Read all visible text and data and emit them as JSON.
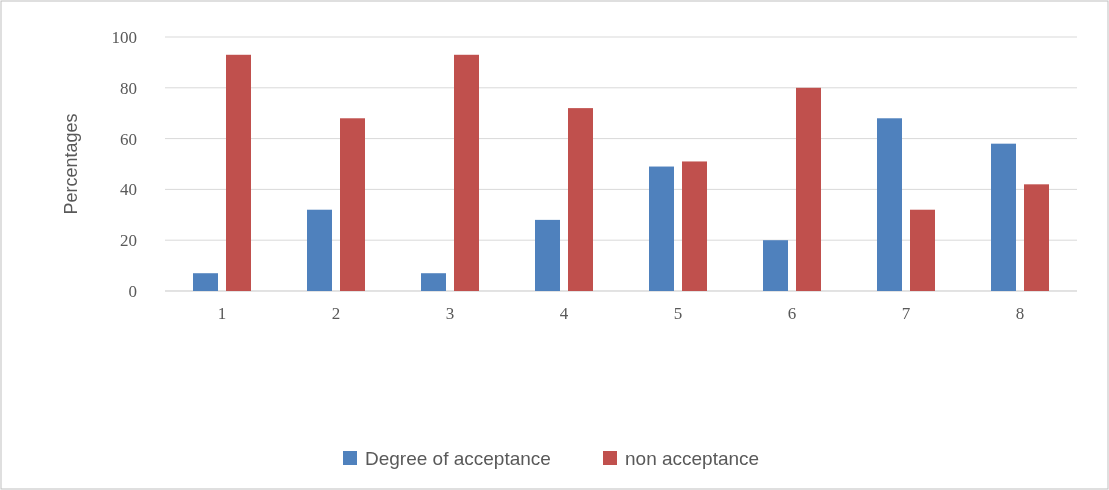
{
  "chart_data": {
    "type": "bar",
    "ylabel": "Percentages",
    "categories": [
      "1",
      "2",
      "3",
      "4",
      "5",
      "6",
      "7",
      "8"
    ],
    "series": [
      {
        "name": "Degree of acceptance",
        "color": "#4f81bd",
        "values": [
          7,
          32,
          7,
          28,
          49,
          20,
          68,
          58
        ]
      },
      {
        "name": "non acceptance",
        "color": "#c0504d",
        "values": [
          93,
          68,
          93,
          72,
          51,
          80,
          32,
          42
        ]
      }
    ],
    "ylim": [
      0,
      100
    ],
    "yticks": [
      0,
      20,
      40,
      60,
      80,
      100
    ],
    "grid": "y",
    "legend": "bottom"
  }
}
